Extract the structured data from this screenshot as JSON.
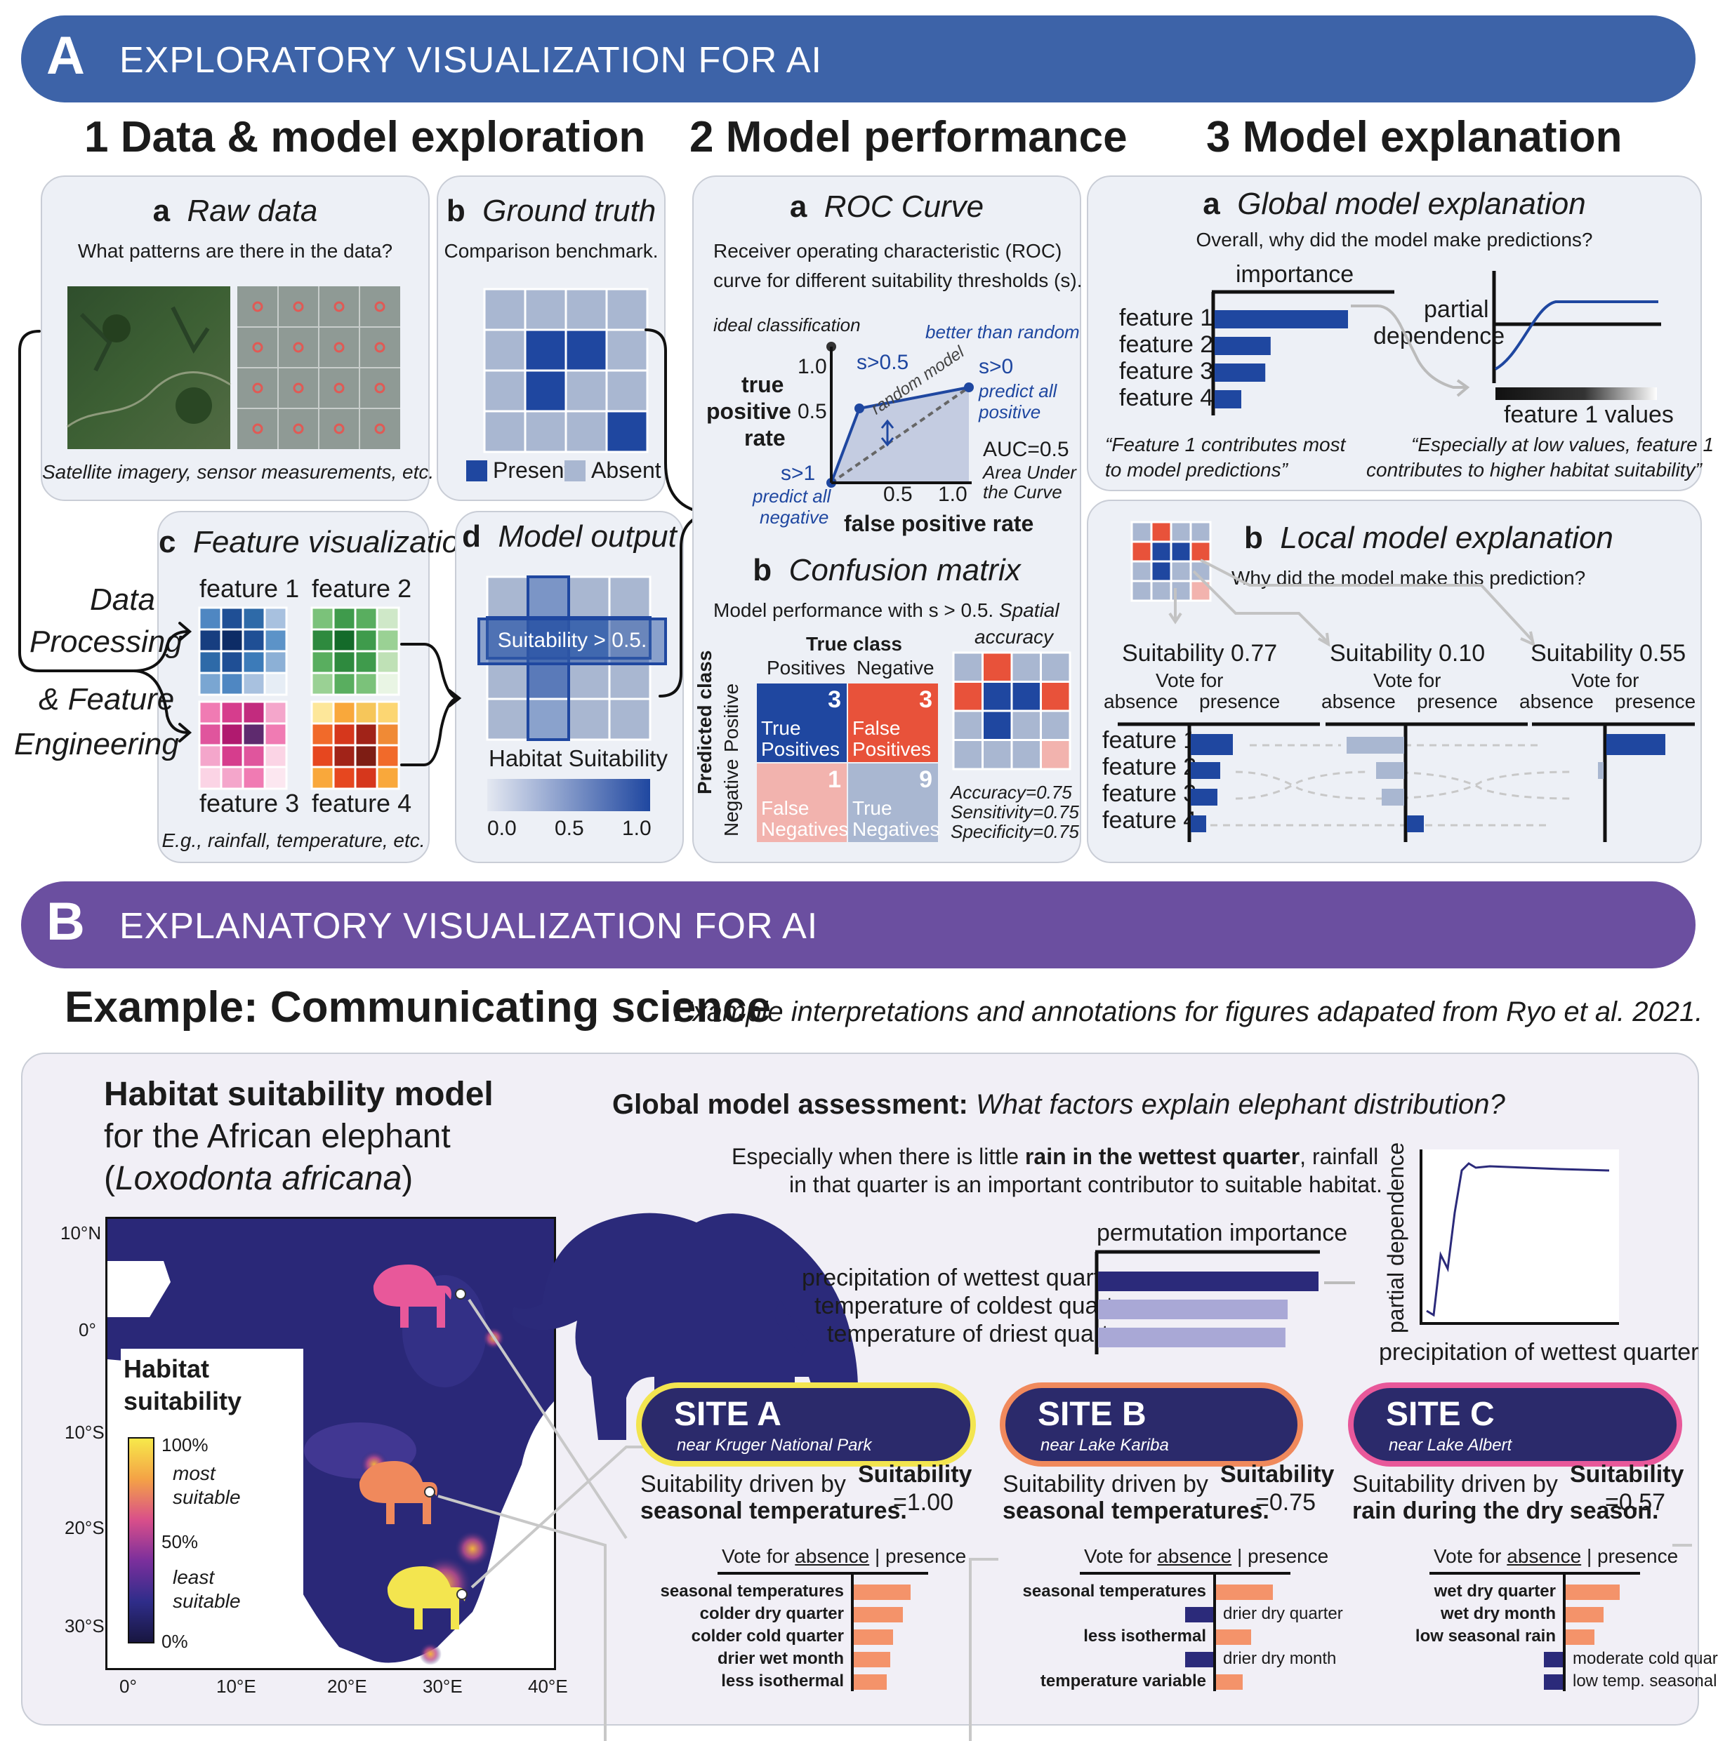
{
  "sectionA": {
    "letter": "A",
    "title": "EXPLORATORY VISUALIZATION FOR AI",
    "color": "#3d63a8",
    "col1": "1  Data & model exploration",
    "col2": "2  Model performance",
    "col3": "3  Model explanation"
  },
  "raw": {
    "letter": "a",
    "title": "Raw data",
    "question": "What patterns are there in the data?",
    "caption": "Satellite imagery, sensor measurements, etc."
  },
  "ground": {
    "letter": "b",
    "title": "Ground truth",
    "question": "Comparison benchmark.",
    "legend_present": "Present",
    "legend_absent": "Absent"
  },
  "feature": {
    "letter": "c",
    "title": "Feature visualization",
    "f1": "feature 1",
    "f2": "feature 2",
    "f3": "feature 3",
    "f4": "feature 4",
    "caption": "E.g., rainfall, temperature, etc."
  },
  "output": {
    "letter": "d",
    "title": "Model output",
    "box_label": "Suitability > 0.5.",
    "legend_title": "Habitat Suitability",
    "ticks": [
      "0.0",
      "0.5",
      "1.0"
    ]
  },
  "processing": {
    "line1": "Data",
    "line2": "Processing",
    "line3": "& Feature",
    "line4": "Engineering"
  },
  "roc": {
    "letter": "a",
    "title": "ROC Curve",
    "desc1": "Receiver operating characteristic (ROC)",
    "desc2": "curve for different suitability thresholds (s).",
    "ideal": "ideal classification",
    "better": "better than random",
    "ylabel1": "true",
    "ylabel2": "positive",
    "ylabel3": "rate",
    "xlabel": "false positive rate",
    "y10": "1.0",
    "y05": "0.5",
    "x05": "0.5",
    "x10": "1.0",
    "s05": "s>0.5",
    "s0": "s>0",
    "s0b": "predict all",
    "s0c": "positive",
    "s1": "s>1",
    "s1b": "predict all",
    "s1c": "negative",
    "random": "random model",
    "auc": "AUC=0.5",
    "auc2": "Area Under",
    "auc3": "the Curve"
  },
  "confusion": {
    "letter": "b",
    "title": "Confusion matrix",
    "desc": "Model performance with s > 0.5.",
    "spatial1": "Spatial",
    "spatial2": "accuracy",
    "true_class": "True class",
    "positives": "Positives",
    "negative": "Negative",
    "predicted": "Predicted class",
    "row_pos": "Positive",
    "row_neg": "Negative",
    "tp_n": "3",
    "tp1": "True",
    "tp2": "Positives",
    "fp_n": "3",
    "fp1": "False",
    "fp2": "Positives",
    "fn_n": "1",
    "fn1": "False",
    "fn2": "Negatives",
    "tn_n": "9",
    "tn1": "True",
    "tn2": "Negatives",
    "acc": "Accuracy=0.75",
    "sens": "Sensitivity=0.75",
    "spec": "Specificity=0.75"
  },
  "global": {
    "letter": "a",
    "title": "Global model explanation",
    "question": "Overall, why did the model make predictions?",
    "importance": "importance",
    "features": [
      "feature 1",
      "feature 2",
      "feature 3",
      "feature 4"
    ],
    "importance_values": [
      1.0,
      0.42,
      0.38,
      0.2
    ],
    "pd1": "partial",
    "pd2": "dependence",
    "pdx": "feature 1 values",
    "quote1a": "“Feature 1 contributes most",
    "quote1b": "to model predictions”",
    "quote2a": "“Especially at low values, feature 1",
    "quote2b": "contributes to higher habitat suitability”"
  },
  "local": {
    "letter": "b",
    "title": "Local model explanation",
    "question": "Why did the model make this prediction?",
    "vote_for": "Vote for",
    "absence": "absence",
    "presence": "presence",
    "features": [
      "feature 1",
      "feature 2",
      "feature 3",
      "feature 4"
    ],
    "s1": "Suitability 0.77",
    "s2": "Suitability 0.10",
    "s3": "Suitability 0.55"
  },
  "sectionB": {
    "letter": "B",
    "title": "EXPLANATORY VISUALIZATION FOR AI",
    "color": "#6b4fa0",
    "example": "Example: Communicating science",
    "example_note": "Example interpretations and annotations for figures adapated from Ryo et al. 2021."
  },
  "hab": {
    "title1": "Habitat suitability model",
    "title2": "for the African elephant",
    "title3a": "(",
    "title3b": "Loxodonta africana",
    "title3c": ")",
    "lat": [
      "10°N",
      "0°",
      "10°S",
      "20°S",
      "30°S"
    ],
    "lon": [
      "0°",
      "10°E",
      "20°E",
      "30°E",
      "40°E"
    ],
    "legend1": "Habitat",
    "legend2": "suitability",
    "p100": "100%",
    "p50": "50%",
    "p0": "0%",
    "most1": "most",
    "most2": "suitable",
    "least1": "least",
    "least2": "suitable"
  },
  "assessment": {
    "bold": "Global model assessment:",
    "ital": "What factors explain elephant distribution?",
    "line1a": "Especially when there is little ",
    "line1b": "rain in the wettest quarter",
    "line1c": ", rainfall",
    "line2": "in that quarter is an important contributor to suitable habitat.",
    "perm": "permutation importance",
    "features": [
      "precipitation of wettest quarter",
      "temperature of coldest quarter",
      "temperature of driest quarter"
    ],
    "values": [
      1.0,
      0.86,
      0.85
    ],
    "pd_y": "partial dependence",
    "pd_x": "precipitation of wettest quarter"
  },
  "sites": [
    {
      "name": "SITE A",
      "near": "near Kruger National Park",
      "driven1": "Suitability driven by",
      "driven2": "seasonal temperatures.",
      "suit": "Suitability",
      "val": "=1.00",
      "bars": [
        {
          "label": "seasonal temperatures",
          "value": 0.9
        },
        {
          "label": "colder dry quarter",
          "value": 0.78
        },
        {
          "label": "colder cold quarter",
          "value": 0.62
        },
        {
          "label": "drier wet month",
          "value": 0.58
        },
        {
          "label": "less isothermal",
          "value": 0.52
        }
      ]
    },
    {
      "name": "SITE B",
      "near": "near Lake Kariba",
      "driven1": "Suitability driven by",
      "driven2": "seasonal temperatures.",
      "suit": "Suitability",
      "val": "=0.75",
      "bars": [
        {
          "label": "seasonal temperatures",
          "value": 0.9
        },
        {
          "label": "drier dry quarter",
          "value": -0.45
        },
        {
          "label": "less isothermal",
          "value": 0.55
        },
        {
          "label": "drier dry month",
          "value": -0.45
        },
        {
          "label": "temperature variable",
          "value": 0.42
        }
      ]
    },
    {
      "name": "SITE C",
      "near": "near Lake Albert",
      "driven1": "Suitability driven by",
      "driven2": "rain during the dry season.",
      "suit": "Suitability",
      "val": "=0.57",
      "bars": [
        {
          "label": "wet dry quarter",
          "value": 0.85
        },
        {
          "label": "wet dry month",
          "value": 0.6
        },
        {
          "label": "low seasonal rain",
          "value": 0.45
        },
        {
          "label": "moderate cold quarter",
          "value": -0.3
        },
        {
          "label": "low temp. seasonality",
          "value": -0.3
        }
      ]
    }
  ],
  "vote": {
    "a": "Vote for ",
    "b": "absence",
    "c": "presence"
  }
}
